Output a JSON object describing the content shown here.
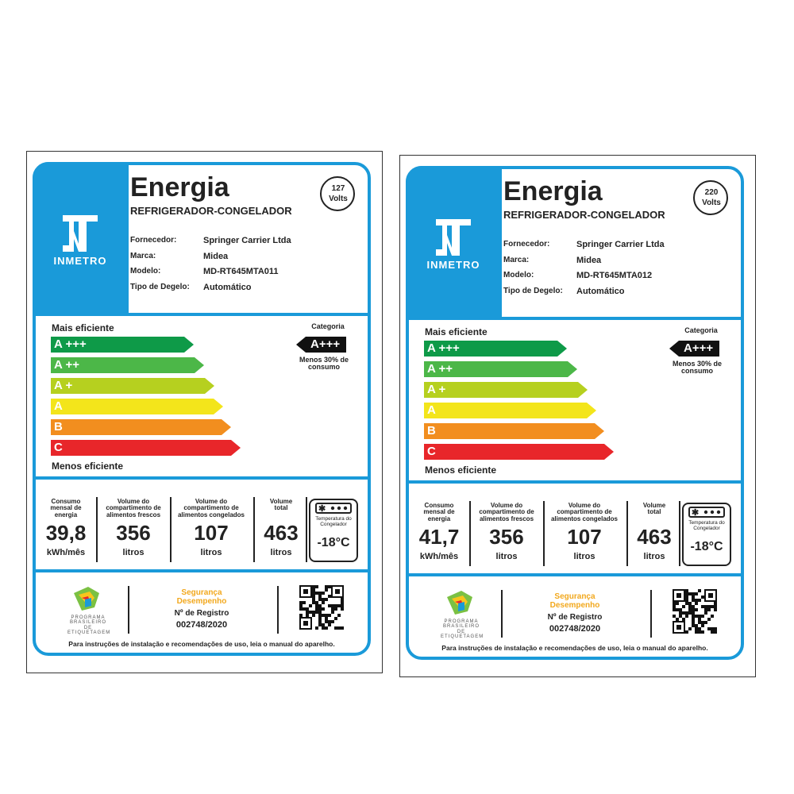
{
  "labels": [
    {
      "title": "Energia",
      "subtitle": "REFRIGERADOR-CONGELADOR",
      "voltage": "127",
      "voltage_unit": "Volts",
      "logo": "INMETRO",
      "fields": [
        {
          "label": "Fornecedor:",
          "value": "Springer Carrier Ltda"
        },
        {
          "label": "Marca:",
          "value": "Midea"
        },
        {
          "label": "Modelo:",
          "value": "MD-RT645MTA011"
        },
        {
          "label": "Tipo de Degelo:",
          "value": "Automático"
        }
      ],
      "most_efficient": "Mais eficiente",
      "least_efficient": "Menos eficiente",
      "classes": [
        "A +++",
        "A ++",
        "A +",
        "A",
        "B",
        "C"
      ],
      "category_title": "Categoria",
      "category": "A+++",
      "category_note": "Menos 30% de consumo",
      "stats": [
        {
          "caption": "Consumo mensal de energia",
          "value": "39,8",
          "unit": "kWh/mês"
        },
        {
          "caption": "Volume do compartimento de alimentos frescos",
          "value": "356",
          "unit": "litros"
        },
        {
          "caption": "Volume do compartimento de alimentos congelados",
          "value": "107",
          "unit": "litros"
        },
        {
          "caption": "Volume total",
          "value": "463",
          "unit": "litros"
        }
      ],
      "temperature_caption": "Temperatura do Congelador",
      "temperature": "-18°C",
      "program": "PROGRAMA BRASILEIRO DE ETIQUETAGEM",
      "seal": "Segurança Desempenho",
      "registry_label": "Nº de Registro",
      "registry": "002748/2020",
      "footer": "Para instruções de instalação e recomendações de uso, leia o manual do aparelho."
    },
    {
      "title": "Energia",
      "subtitle": "REFRIGERADOR-CONGELADOR",
      "voltage": "220",
      "voltage_unit": "Volts",
      "logo": "INMETRO",
      "fields": [
        {
          "label": "Fornecedor:",
          "value": "Springer Carrier Ltda"
        },
        {
          "label": "Marca:",
          "value": "Midea"
        },
        {
          "label": "Modelo:",
          "value": "MD-RT645MTA012"
        },
        {
          "label": "Tipo de Degelo:",
          "value": "Automático"
        }
      ],
      "most_efficient": "Mais eficiente",
      "least_efficient": "Menos eficiente",
      "classes": [
        "A +++",
        "A ++",
        "A +",
        "A",
        "B",
        "C"
      ],
      "category_title": "Categoria",
      "category": "A+++",
      "category_note": "Menos 30% de consumo",
      "stats": [
        {
          "caption": "Consumo mensal de energia",
          "value": "41,7",
          "unit": "kWh/mês"
        },
        {
          "caption": "Volume do compartimento de alimentos frescos",
          "value": "356",
          "unit": "litros"
        },
        {
          "caption": "Volume do compartimento de alimentos congelados",
          "value": "107",
          "unit": "litros"
        },
        {
          "caption": "Volume total",
          "value": "463",
          "unit": "litros"
        }
      ],
      "temperature_caption": "Temperatura do Congelador",
      "temperature": "-18°C",
      "program": "PROGRAMA BRASILEIRO DE ETIQUETAGEM",
      "seal": "Segurança Desempenho",
      "registry_label": "Nº de Registro",
      "registry": "002748/2020",
      "footer": "Para instruções de instalação e recomendações de uso, leia o manual do aparelho."
    }
  ]
}
